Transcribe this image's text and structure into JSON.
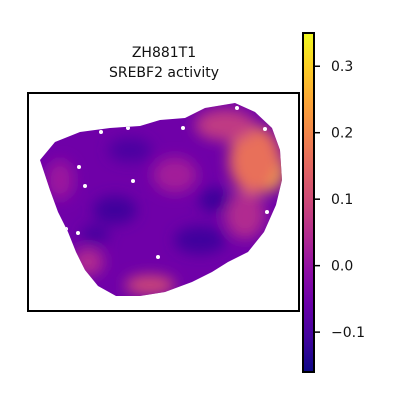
{
  "chart_data": {
    "type": "heatmap",
    "title_line1": "ZH881T1",
    "title_line2": "SREBF2 activity",
    "xlabel": "",
    "ylabel": "",
    "grid": false,
    "legend": "none",
    "colormap": "plasma",
    "colorbar": {
      "vmin": -0.16,
      "vmax": 0.35,
      "ticks": [
        0.3,
        0.2,
        0.1,
        0.0,
        -0.1
      ],
      "tick_labels": [
        "0.3",
        "0.2",
        "0.1",
        "0.0",
        "−0.1"
      ]
    }
  },
  "colors": {
    "background": "#ffffff",
    "frame": "#000000",
    "cmap_stops": [
      "#0d0887",
      "#41049d",
      "#6a00a8",
      "#8f0da4",
      "#b12a90",
      "#cc4778",
      "#e16462",
      "#f2844b",
      "#fca636",
      "#fcce25",
      "#f0f921"
    ]
  }
}
